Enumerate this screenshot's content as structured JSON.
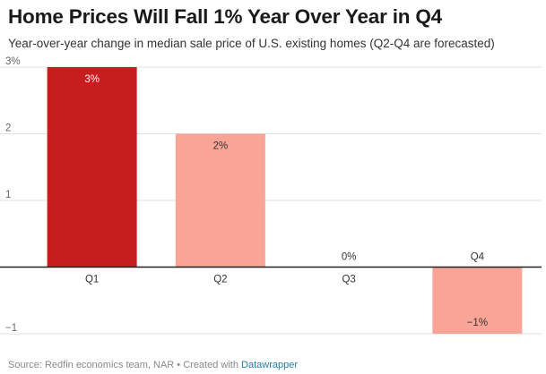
{
  "header": {
    "title": "Home Prices Will Fall 1% Year Over Year in Q4",
    "subtitle": "Year-over-year change in median sale price of U.S. existing homes (Q2-Q4 are forecasted)"
  },
  "footer": {
    "source_text": "Source: Redfin economics team, NAR • Created with ",
    "link_text": "Datawrapper"
  },
  "colors": {
    "actual": "#c61e1e",
    "forecast": "#f8a597",
    "link": "#1d81a2"
  },
  "chart_data": {
    "type": "bar",
    "title": "Home Prices Will Fall 1% Year Over Year in Q4",
    "xlabel": "",
    "ylabel": "",
    "categories": [
      "Q1",
      "Q2",
      "Q3",
      "Q4"
    ],
    "values": [
      3,
      2,
      0,
      -1
    ],
    "value_labels": [
      "3%",
      "2%",
      "0%",
      "−1%"
    ],
    "bar_kind": [
      "actual",
      "forecast",
      "forecast",
      "forecast"
    ],
    "ylim": [
      -1,
      3
    ],
    "yticks": [
      -1,
      1,
      2,
      3
    ],
    "ytick_labels": [
      "−1",
      "1",
      "2",
      "3%"
    ],
    "grid": true
  }
}
